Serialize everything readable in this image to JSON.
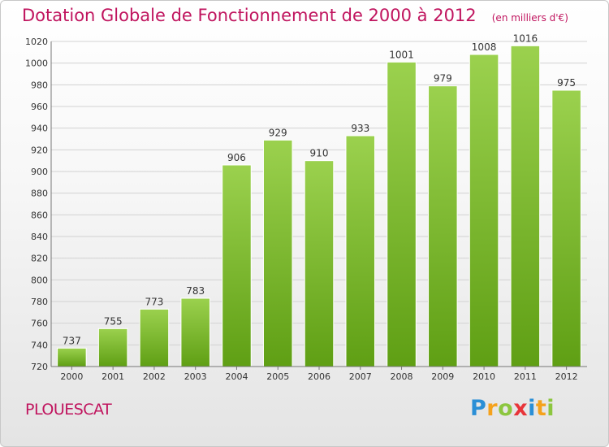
{
  "header": {
    "title": "Dotation Globale de Fonctionnement de 2000 à 2012",
    "unit_note": "(en milliers d'€)"
  },
  "footer": {
    "place": "PLOUESCAT",
    "logo_letters": [
      "P",
      "r",
      "o",
      "x",
      "i",
      "t",
      "i"
    ],
    "logo_colors": [
      "#2b8fd6",
      "#f5a21c",
      "#8cc63f",
      "#e8353a",
      "#2b8fd6",
      "#f5a21c",
      "#8cc63f"
    ]
  },
  "colors": {
    "bar_top": "#9bd14e",
    "bar_bottom": "#5f9f14",
    "text_accent": "#c0145e"
  },
  "chart_data": {
    "type": "bar",
    "categories": [
      "2000",
      "2001",
      "2002",
      "2003",
      "2004",
      "2005",
      "2006",
      "2007",
      "2008",
      "2009",
      "2010",
      "2011",
      "2012"
    ],
    "values": [
      737,
      755,
      773,
      783,
      906,
      929,
      910,
      933,
      1001,
      979,
      1008,
      1016,
      975
    ],
    "ylim": [
      720,
      1020
    ],
    "yticks": [
      720,
      740,
      760,
      780,
      800,
      820,
      840,
      860,
      880,
      900,
      920,
      940,
      960,
      980,
      1000,
      1020
    ],
    "grid": true
  }
}
